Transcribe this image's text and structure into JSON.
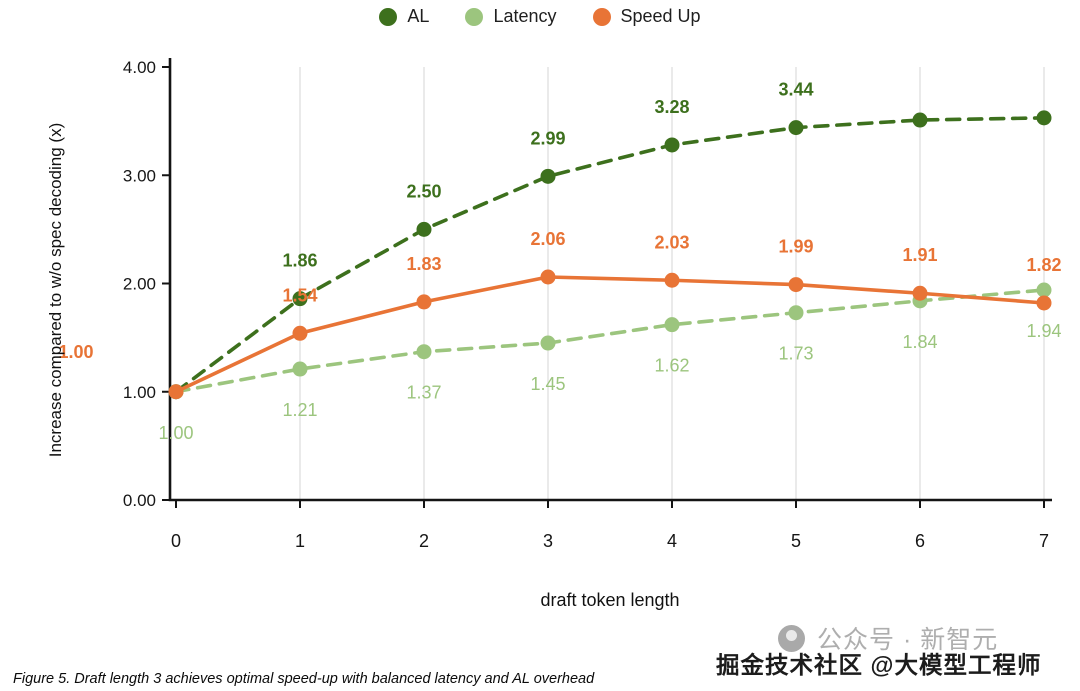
{
  "chart_data": {
    "type": "line",
    "x": [
      0,
      1,
      2,
      3,
      4,
      5,
      6,
      7
    ],
    "xlabel": "draft token length",
    "ylabel": "Increase compared to w/o spec decoding (x)",
    "ylim": [
      0,
      4
    ],
    "yticks": [
      0,
      1,
      2,
      3,
      4
    ],
    "ytick_labels": [
      "0.00",
      "1.00",
      "2.00",
      "3.00",
      "4.00"
    ],
    "grid": "vertical-only",
    "legend_position": "top-center",
    "series": [
      {
        "name": "AL",
        "color": "#3d701d",
        "line_style": "dashed",
        "values": [
          1.0,
          1.86,
          2.5,
          2.99,
          3.28,
          3.44,
          3.51,
          3.53
        ],
        "labels": [
          "",
          "1.86",
          "2.50",
          "2.99",
          "3.28",
          "3.44",
          "",
          ""
        ],
        "label_placement": "above",
        "label_weight": 600,
        "label_offsets": {}
      },
      {
        "name": "Latency",
        "color": "#9cc57e",
        "line_style": "dashed",
        "values": [
          1.0,
          1.21,
          1.37,
          1.45,
          1.62,
          1.73,
          1.84,
          1.94
        ],
        "labels": [
          "1.00",
          "1.21",
          "1.37",
          "1.45",
          "1.62",
          "1.73",
          "1.84",
          "1.94"
        ],
        "label_placement": "below",
        "label_weight": 400,
        "label_offsets": {}
      },
      {
        "name": "Speed Up",
        "color": "#e87436",
        "line_style": "solid",
        "values": [
          1.0,
          1.54,
          1.83,
          2.06,
          2.03,
          1.99,
          1.91,
          1.82
        ],
        "labels": [
          "1.00",
          "1.54",
          "1.83",
          "2.06",
          "2.03",
          "1.99",
          "1.91",
          "1.82"
        ],
        "label_placement": "above",
        "label_weight": 700,
        "label_offsets": {
          "0": [
            -100,
            -34
          ]
        }
      }
    ]
  },
  "caption": "Figure 5. Draft length 3 achieves optimal speed-up with balanced latency and AL overhead",
  "watermark": {
    "gray_text": "公众号 · 新智元",
    "dark_text": "掘金技术社区 @大模型工程师"
  }
}
